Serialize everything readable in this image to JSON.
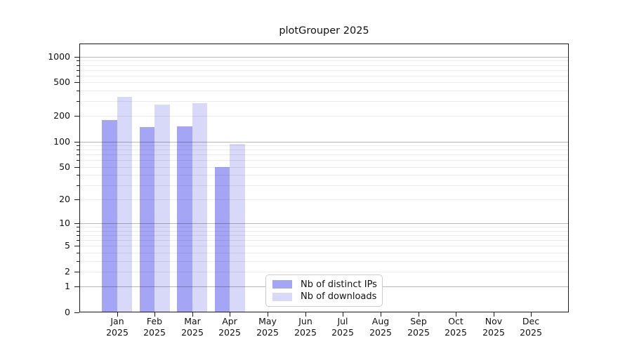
{
  "chart_data": {
    "type": "bar",
    "title": "plotGrouper 2025",
    "categories": [
      "Jan",
      "Feb",
      "Mar",
      "Apr",
      "May",
      "Jun",
      "Jul",
      "Aug",
      "Sep",
      "Oct",
      "Nov",
      "Dec"
    ],
    "category_year": "2025",
    "series": [
      {
        "name": "Nb of distinct IPs",
        "color": "#a5a5f5",
        "values": [
          178,
          148,
          151,
          50,
          0,
          0,
          0,
          0,
          0,
          0,
          0,
          0
        ]
      },
      {
        "name": "Nb of downloads",
        "color": "#d8d8f8",
        "values": [
          340,
          272,
          282,
          93,
          0,
          0,
          0,
          0,
          0,
          0,
          0,
          0
        ]
      }
    ],
    "y_axis": {
      "scale": "log1p",
      "tick_labels": [
        "1000",
        "500",
        "200",
        "100",
        "50",
        "20",
        "10",
        "5",
        "2",
        "1",
        "0"
      ],
      "tick_values": [
        1000,
        500,
        200,
        100,
        50,
        20,
        10,
        5,
        2,
        1,
        0
      ],
      "minor_values": [
        2,
        3,
        4,
        5,
        6,
        7,
        8,
        9,
        20,
        30,
        40,
        50,
        60,
        70,
        80,
        90,
        200,
        300,
        400,
        500,
        600,
        700,
        800,
        900
      ],
      "decade_values": [
        1,
        10,
        100,
        1000
      ],
      "max": 1470
    },
    "grid": {
      "on": true
    },
    "legend": {
      "position": "lower center"
    },
    "colors": {
      "distinct_ips_bar": "#a5a5f5",
      "downloads_bar": "#d8d8f8",
      "spine": "#1a1a1a",
      "minor_grid": "#ececec",
      "decade_grid": "#b9b9b9",
      "legend_border": "#cccccc"
    }
  }
}
